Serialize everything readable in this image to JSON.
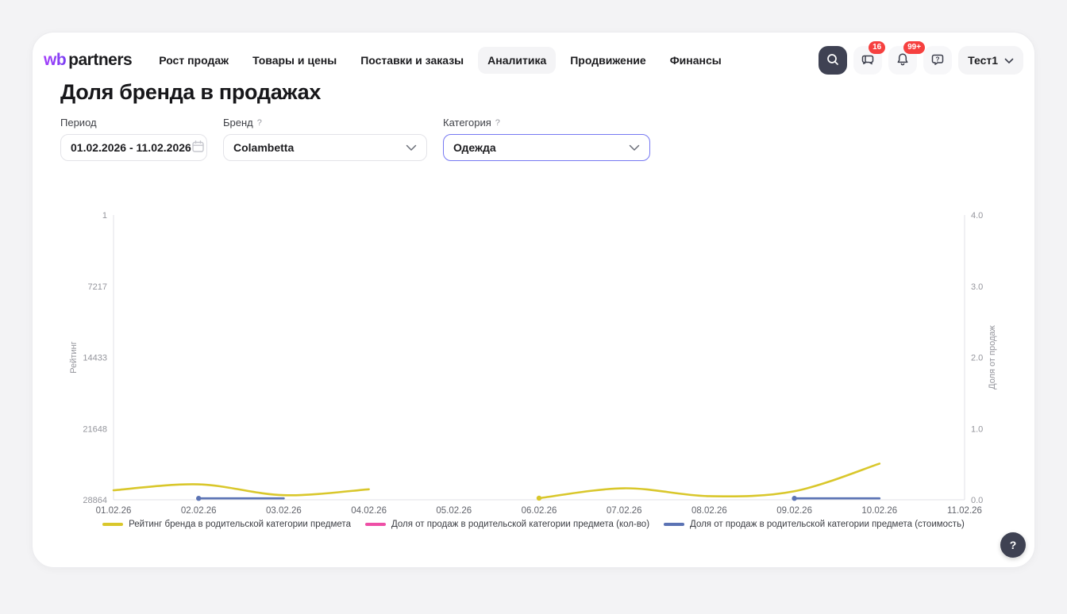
{
  "header": {
    "logo": {
      "wb": "wb",
      "partners": "partners"
    },
    "nav": [
      {
        "label": "Рост продаж",
        "active": false
      },
      {
        "label": "Товары и цены",
        "active": false
      },
      {
        "label": "Поставки и заказы",
        "active": false
      },
      {
        "label": "Аналитика",
        "active": true
      },
      {
        "label": "Продвижение",
        "active": false
      },
      {
        "label": "Финансы",
        "active": false
      }
    ],
    "actions": {
      "messages_badge": "16",
      "notifications_badge": "99+",
      "account_label": "Тест1"
    }
  },
  "page": {
    "title": "Доля бренда в продажах"
  },
  "filters": {
    "period": {
      "label": "Период",
      "value": "01.02.2026 - 11.02.2026"
    },
    "brand": {
      "label": "Бренд",
      "hint": "?",
      "value": "Colambetta"
    },
    "category": {
      "label": "Категория",
      "hint": "?",
      "value": "Одежда"
    }
  },
  "help_button": {
    "label": "?"
  },
  "chart_data": {
    "type": "line",
    "title": "Доля бренда в продажах",
    "x_ticks": [
      "01.02.26",
      "02.02.26",
      "03.02.26",
      "04.02.26",
      "05.02.26",
      "06.02.26",
      "07.02.26",
      "08.02.26",
      "09.02.26",
      "10.02.26",
      "11.02.26"
    ],
    "left_axis": {
      "label": "Рейтинг",
      "ticks": [
        "1",
        "7217",
        "14433",
        "21648",
        "28864"
      ],
      "range": [
        1,
        28864
      ],
      "inverted": true
    },
    "right_axis": {
      "label": "Доля от продаж",
      "ticks": [
        "4.0",
        "3.0",
        "2.0",
        "1.0",
        "0.0"
      ],
      "range": [
        0,
        4
      ]
    },
    "grid": false,
    "legend_position": "bottom",
    "series": [
      {
        "name": "Рейтинг бренда в родительской категории предмета",
        "color": "#d9c72b",
        "axis": "left",
        "smooth": true,
        "segments": [
          {
            "dates": [
              "01.02.26",
              "02.02.26",
              "03.02.26",
              "04.02.26"
            ],
            "values": [
              27900,
              27300,
              28400,
              27800
            ],
            "start_dot": false
          },
          {
            "dates": [
              "06.02.26",
              "07.02.26",
              "08.02.26",
              "09.02.26",
              "10.02.26"
            ],
            "values": [
              28700,
              27700,
              28500,
              28000,
              25200
            ],
            "start_dot": true
          }
        ]
      },
      {
        "name": "Доля от продаж в родительской категории предмета (кол-во)",
        "color": "#ee4fa6",
        "axis": "right",
        "smooth": false,
        "segments": []
      },
      {
        "name": "Доля от продаж в родительской категории предмета (стоимость)",
        "color": "#5b73b4",
        "axis": "right",
        "smooth": false,
        "segments": [
          {
            "dates": [
              "02.02.26",
              "03.02.26"
            ],
            "values": [
              0.02,
              0.02
            ],
            "start_dot": true
          },
          {
            "dates": [
              "09.02.26",
              "10.02.26"
            ],
            "values": [
              0.02,
              0.02
            ],
            "start_dot": true
          }
        ]
      }
    ]
  }
}
